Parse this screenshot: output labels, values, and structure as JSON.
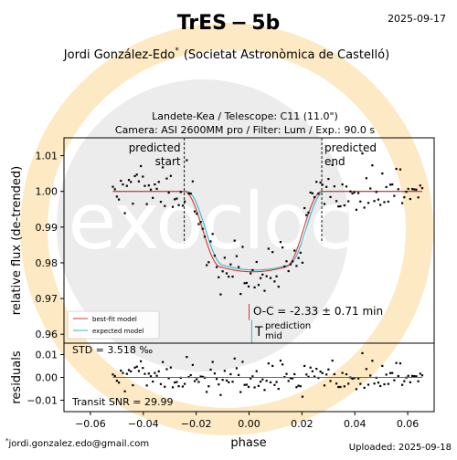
{
  "header": {
    "title": "TrES − 5b",
    "date": "2025-09-17",
    "observer": "Jordi González-Edo",
    "observer_mark": "*",
    "affiliation": "(Societat Astronòmica de Castelló)",
    "subtitle_line1": "Landete-Kea / Telescope: C11 (11.0\")",
    "subtitle_line2": "Camera: ASI 2600MM pro / Filter: Lum / Exp.: 90.0 s"
  },
  "footer": {
    "email": "jordi.gonzalez.edo@gmail.com",
    "email_mark": "*",
    "uploaded": "Uploaded: 2025-09-18"
  },
  "watermark": {
    "text": "exoclock",
    "colors": {
      "ring": "#fde9c4",
      "disc": "#ececec"
    }
  },
  "colors": {
    "data": "#000000",
    "best_fit": "#e03030",
    "expected": "#30b8c8",
    "frame": "#000000"
  },
  "chart_data": [
    {
      "type": "scatter",
      "panel": "light-curve",
      "ylabel": "relative flux (de-trended)",
      "xlim": [
        -0.07,
        0.07
      ],
      "ylim": [
        0.9575,
        1.015
      ],
      "y_ticks": [
        "0.96",
        "0.97",
        "0.98",
        "0.99",
        "1.00",
        "1.01"
      ],
      "y_tick_values": [
        0.96,
        0.97,
        0.98,
        0.99,
        1.0,
        1.01
      ],
      "ingress_phase": -0.0245,
      "egress_phase": 0.0275,
      "transit_depth": 0.0225,
      "model_flat_phase": 0.0122,
      "baseline": 1.0,
      "x_range": [
        -0.0515,
        0.0655
      ],
      "n_points": 156,
      "scatter_ppm": 3518,
      "annotations": {
        "predicted_start": "predicted start",
        "predicted_end": "predicted end",
        "o_minus_c": "O-C = -2.33 ± 0.71 min",
        "t_symbol": "T",
        "t_sup": "prediction",
        "t_sub": "mid",
        "o_minus_c_minutes": -2.33,
        "phase_per_minute": 0.000502
      },
      "legend": {
        "placement": "bottom-left",
        "best_fit": "best-fit model",
        "expected": "expected model"
      }
    },
    {
      "type": "scatter",
      "panel": "residuals",
      "ylabel": "residuals",
      "xlabel": "phase",
      "xlim": [
        -0.07,
        0.07
      ],
      "ylim": [
        -0.015,
        0.015
      ],
      "x_ticks": [
        "−0.06",
        "−0.04",
        "−0.02",
        "0.00",
        "0.02",
        "0.04",
        "0.06"
      ],
      "x_tick_values": [
        -0.06,
        -0.04,
        -0.02,
        0.0,
        0.02,
        0.04,
        0.06
      ],
      "y_ticks": [
        "−0.01",
        "0.00",
        "0.01"
      ],
      "y_tick_values": [
        -0.01,
        0.0,
        0.01
      ],
      "std_label": "STD = 3.518 ‰",
      "snr_label": "Transit SNR = 29.99"
    }
  ]
}
